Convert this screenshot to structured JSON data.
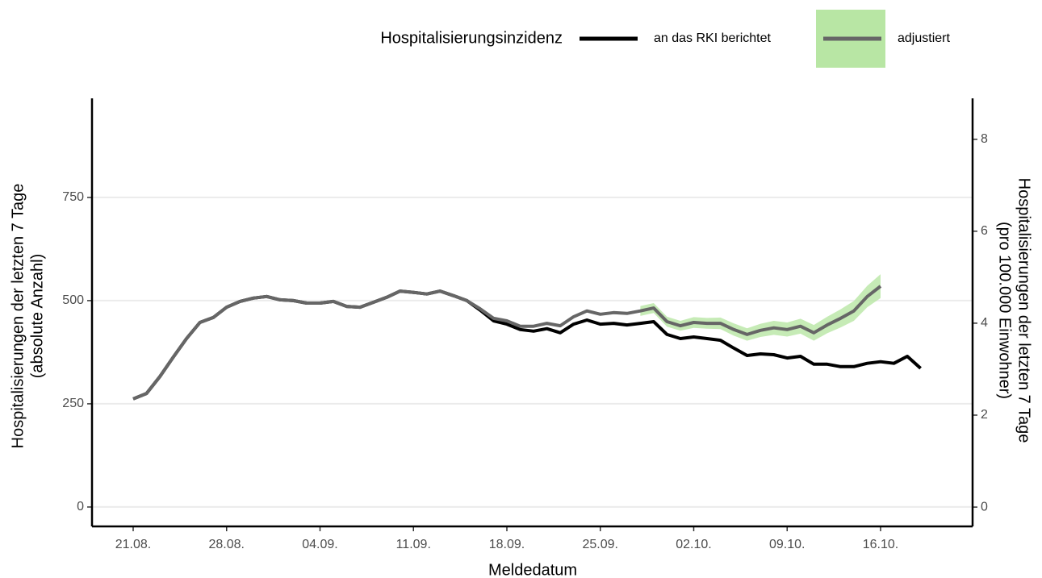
{
  "chart_data": {
    "type": "line",
    "legend_title": "Hospitalisierungsinzidenz",
    "x_label": "Meldedatum",
    "y_label": [
      "Hospitalisierungen der letzten 7 Tage",
      "(absolute Anzahl)"
    ],
    "y2_label": [
      "Hospitalisierungen der letzten 7 Tage",
      "(pro 100.000 Einwohner)"
    ],
    "x": [
      "21.08.",
      null,
      null,
      null,
      null,
      null,
      null,
      "28.08.",
      null,
      null,
      null,
      null,
      null,
      null,
      "04.09.",
      null,
      null,
      null,
      null,
      null,
      null,
      "11.09.",
      null,
      null,
      null,
      null,
      null,
      null,
      "18.09.",
      null,
      null,
      null,
      null,
      null,
      null,
      "25.09.",
      null,
      null,
      null,
      null,
      null,
      null,
      "02.10.",
      null,
      null,
      null,
      null,
      null,
      null,
      "09.10.",
      null,
      null,
      null,
      null,
      null,
      null,
      "16.10.",
      null,
      null,
      null
    ],
    "series": [
      {
        "name": "an das RKI berichtet",
        "color": "#000000",
        "values": [
          262,
          275,
          316,
          363,
          408,
          447,
          459,
          484,
          498,
          506,
          510,
          502,
          500,
          494,
          494,
          498,
          486,
          484,
          496,
          508,
          523,
          520,
          516,
          523,
          512,
          500,
          477,
          451,
          443,
          430,
          426,
          432,
          422,
          443,
          453,
          443,
          445,
          441,
          445,
          449,
          418,
          408,
          412,
          408,
          404,
          385,
          367,
          371,
          369,
          361,
          365,
          346,
          346,
          340,
          340,
          348,
          352,
          348,
          365,
          336
        ]
      },
      {
        "name": "adjustiert",
        "color": "#666666",
        "band_color": "#b8e6a4",
        "values": [
          262,
          275,
          316,
          363,
          408,
          447,
          459,
          484,
          498,
          506,
          510,
          502,
          500,
          494,
          494,
          498,
          486,
          484,
          496,
          508,
          523,
          520,
          516,
          523,
          512,
          500,
          480,
          457,
          451,
          438,
          438,
          445,
          439,
          461,
          475,
          467,
          471,
          469,
          475,
          482,
          449,
          439,
          447,
          445,
          445,
          430,
          418,
          428,
          434,
          430,
          438,
          422,
          441,
          457,
          475,
          510,
          535,
          null,
          null,
          null
        ],
        "band_lower": [
          null,
          null,
          null,
          null,
          null,
          null,
          null,
          null,
          null,
          null,
          null,
          null,
          null,
          null,
          null,
          null,
          null,
          null,
          null,
          null,
          null,
          null,
          null,
          null,
          null,
          null,
          null,
          null,
          null,
          null,
          null,
          null,
          null,
          null,
          null,
          null,
          null,
          null,
          463,
          470,
          437,
          427,
          434,
          432,
          431,
          415,
          403,
          412,
          417,
          413,
          420,
          403,
          421,
          435,
          451,
          484,
          506,
          null,
          null,
          null
        ],
        "band_upper": [
          null,
          null,
          null,
          null,
          null,
          null,
          null,
          null,
          null,
          null,
          null,
          null,
          null,
          null,
          null,
          null,
          null,
          null,
          null,
          null,
          null,
          null,
          null,
          null,
          null,
          null,
          null,
          null,
          null,
          null,
          null,
          null,
          null,
          null,
          null,
          null,
          null,
          null,
          487,
          494,
          461,
          451,
          460,
          458,
          459,
          445,
          433,
          444,
          451,
          447,
          456,
          441,
          461,
          479,
          499,
          536,
          564,
          null,
          null,
          null
        ]
      }
    ],
    "ylim": [
      -47,
      990
    ],
    "yticks": [
      0,
      250,
      500,
      750
    ],
    "y2lim": [
      -0.42,
      8.89
    ],
    "y2ticks": [
      0,
      2,
      4,
      6,
      8
    ],
    "grid": true,
    "legend_position": "top"
  }
}
